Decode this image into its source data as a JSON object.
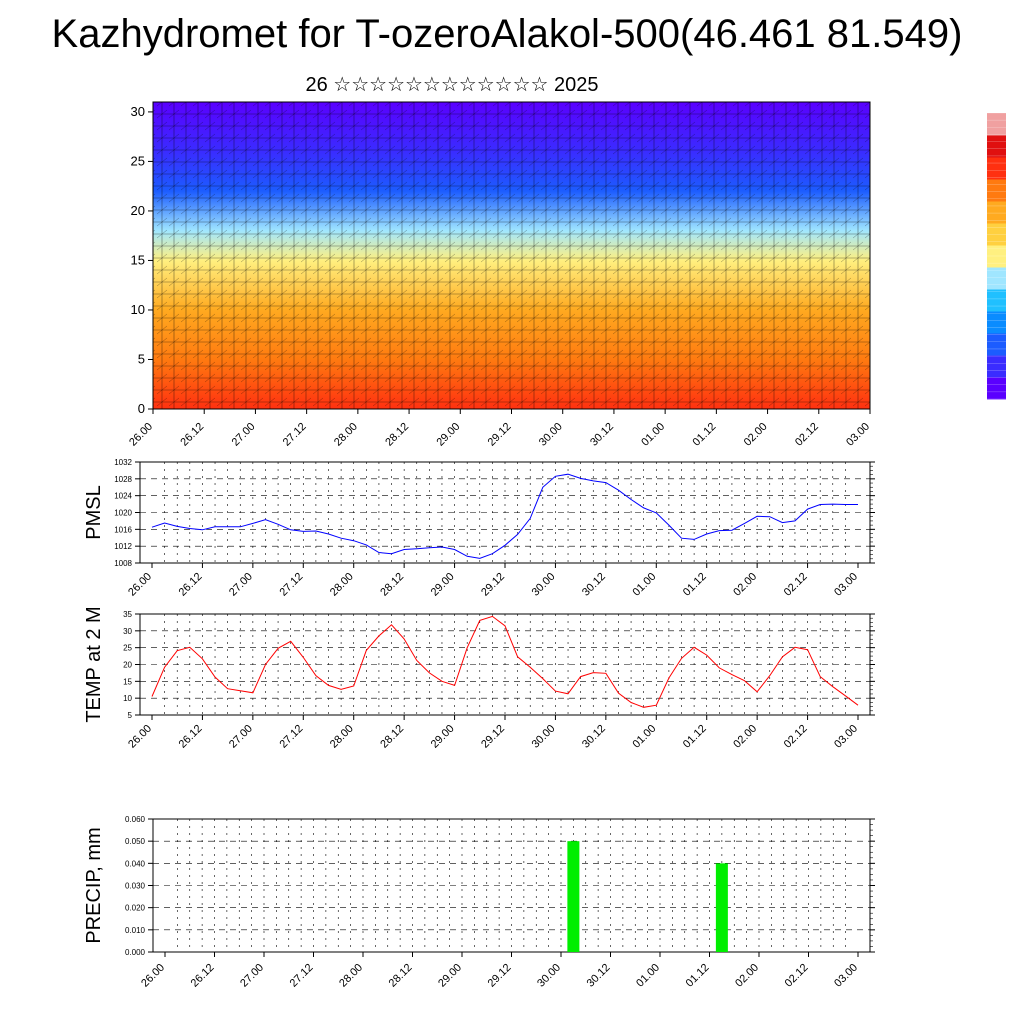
{
  "title": "Kazhydromet for T-ozeroAlakol-500(46.461 81.549)",
  "subtitle": "26 ☆☆☆☆☆☆☆☆☆☆☆☆ 2025",
  "time_ticks": [
    "26.00",
    "26.12",
    "27.00",
    "27.12",
    "28.00",
    "28.12",
    "29.00",
    "29.12",
    "30.00",
    "30.12",
    "01.00",
    "01.12",
    "02.00",
    "02.12",
    "03.00"
  ],
  "colors": {
    "pmsl_line": "#0000ff",
    "temp_line": "#ff0000",
    "precip_bar": "#00ee00",
    "grid": "#000000"
  },
  "colorbar": {
    "colors": [
      "#5a00ff",
      "#3a2cff",
      "#1c5cff",
      "#0a8cff",
      "#20c0ff",
      "#a0e6ff",
      "#fff080",
      "#ffd040",
      "#ffaa20",
      "#ff7a10",
      "#ff3010",
      "#e01010",
      "#f0a0a0"
    ]
  },
  "chart_data": [
    {
      "type": "heatmap",
      "title": "",
      "xlabel": "",
      "ylabel": "",
      "yticks": [
        "0",
        "5",
        "10",
        "15",
        "20",
        "25",
        "30"
      ],
      "ylim": [
        0,
        31
      ],
      "x_range": [
        "26.00",
        "03.00"
      ],
      "field_description_levels": [
        {
          "y": 0,
          "level": 0.9
        },
        {
          "y": 5,
          "level": 0.85
        },
        {
          "y": 10,
          "level": 0.72
        },
        {
          "y": 15,
          "level": 0.58
        },
        {
          "y": 18,
          "level": 0.45
        },
        {
          "y": 22,
          "level": 0.2
        },
        {
          "y": 26,
          "level": 0.08
        },
        {
          "y": 31,
          "level": 0.02
        }
      ],
      "legend": "right"
    },
    {
      "type": "line",
      "ylabel": "PMSL",
      "ylim": [
        1008,
        1032
      ],
      "yticks": [
        "1008",
        "1012",
        "1016",
        "1020",
        "1024",
        "1028",
        "1032"
      ],
      "grid": true,
      "series": [
        {
          "x": [
            0,
            1,
            2,
            3,
            4,
            5,
            6,
            7,
            8,
            9,
            10,
            11,
            12,
            13,
            14,
            15,
            16,
            17,
            18,
            19,
            20,
            21,
            22,
            23,
            24,
            25,
            26,
            27,
            28,
            29,
            30,
            31,
            32,
            33,
            34,
            35,
            36,
            37,
            38,
            39,
            40,
            41,
            42,
            43,
            44,
            45,
            46,
            47,
            48,
            49,
            50,
            51,
            52,
            53,
            54,
            55,
            56
          ],
          "y": [
            1016.5,
            1017.5,
            1016.7,
            1016.2,
            1015.9,
            1016.6,
            1016.6,
            1016.6,
            1017.4,
            1018.3,
            1017.2,
            1015.9,
            1015.5,
            1015.6,
            1014.9,
            1013.9,
            1013.3,
            1012.3,
            1010.5,
            1010.2,
            1011.2,
            1011.4,
            1011.6,
            1011.8,
            1011.2,
            1009.6,
            1009.1,
            1010.2,
            1012.2,
            1014.8,
            1018.6,
            1026.0,
            1028.6,
            1029.1,
            1028.1,
            1027.5,
            1027.1,
            1025.3,
            1023.1,
            1021.1,
            1019.9,
            1017.0,
            1013.9,
            1013.6,
            1014.9,
            1015.7,
            1015.8,
            1017.4,
            1019.1,
            1019.0,
            1017.6,
            1018.0,
            1020.8,
            1021.9,
            1022.0,
            1021.9,
            1021.9
          ]
        }
      ]
    },
    {
      "type": "line",
      "ylabel": "TEMP at 2 M",
      "ylim": [
        5,
        35
      ],
      "yticks": [
        "5",
        "10",
        "15",
        "20",
        "25",
        "30",
        "35"
      ],
      "grid": true,
      "series": [
        {
          "x": [
            0,
            1,
            2,
            3,
            4,
            5,
            6,
            7,
            8,
            9,
            10,
            11,
            12,
            13,
            14,
            15,
            16,
            17,
            18,
            19,
            20,
            21,
            22,
            23,
            24,
            25,
            26,
            27,
            28,
            29,
            30,
            31,
            32,
            33,
            34,
            35,
            36,
            37,
            38,
            39,
            40,
            41,
            42,
            43,
            44,
            45,
            46,
            47,
            48,
            49,
            50,
            51,
            52,
            53,
            54,
            55,
            56
          ],
          "y": [
            10.5,
            19.2,
            24.1,
            25.1,
            21.7,
            16.3,
            12.8,
            12.2,
            11.6,
            20.0,
            24.8,
            26.9,
            22.1,
            16.7,
            13.8,
            12.6,
            13.6,
            24.2,
            28.5,
            31.8,
            27.6,
            21.2,
            17.5,
            15.0,
            13.8,
            25.0,
            33.1,
            34.3,
            31.5,
            22.3,
            19.2,
            15.8,
            12.1,
            11.3,
            16.4,
            17.6,
            17.4,
            11.5,
            8.7,
            7.3,
            7.9,
            16.0,
            21.8,
            25.1,
            22.8,
            19.0,
            17.0,
            15.2,
            11.9,
            16.7,
            22.3,
            25.1,
            24.4,
            16.4,
            13.4,
            10.7,
            7.9
          ]
        }
      ]
    },
    {
      "type": "bar",
      "ylabel": "PRECIP, mm",
      "ylim": [
        0,
        0.06
      ],
      "yticks": [
        "0.000",
        "0.010",
        "0.020",
        "0.030",
        "0.040",
        "0.050",
        "0.060"
      ],
      "grid": true,
      "categories": [
        "30.00",
        "01.12"
      ],
      "x": [
        33,
        45
      ],
      "values": [
        0.05,
        0.04
      ]
    }
  ]
}
